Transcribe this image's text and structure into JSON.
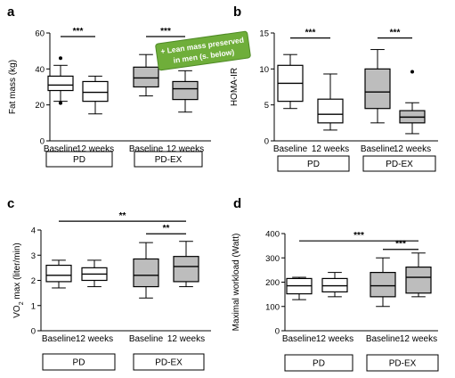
{
  "colors": {
    "white_box": "#ffffff",
    "grey_box": "#bdbdbd",
    "callout": "#6fae3a",
    "line": "#000000"
  },
  "annotation": {
    "text_line1": "+ Lean mass preserved",
    "text_line2": "in men (s. below)"
  },
  "chart_data": [
    {
      "type": "box",
      "panel": "a",
      "ylabel": "Fat mass (kg)",
      "ylim": [
        0,
        60
      ],
      "yticks": [
        "0",
        "20",
        "40",
        "60"
      ],
      "categories": [
        "Baseline",
        "12 weeks",
        "Baseline",
        "12 weeks"
      ],
      "groups": [
        "PD",
        "PD-EX"
      ],
      "boxes": [
        {
          "whislo": 22,
          "q1": 28,
          "med": 31,
          "q3": 36,
          "whishi": 42,
          "fliers": [
            46,
            21
          ],
          "fill": "white"
        },
        {
          "whislo": 15,
          "q1": 22,
          "med": 27,
          "q3": 33,
          "whishi": 36,
          "fliers": [],
          "fill": "white"
        },
        {
          "whislo": 25,
          "q1": 30,
          "med": 35,
          "q3": 41,
          "whishi": 48,
          "fliers": [],
          "fill": "grey"
        },
        {
          "whislo": 16,
          "q1": 23,
          "med": 29,
          "q3": 33,
          "whishi": 39,
          "fliers": [],
          "fill": "grey"
        }
      ],
      "significance": [
        {
          "label": "***",
          "from": 0,
          "to": 1,
          "y": 58
        },
        {
          "label": "***",
          "from": 2,
          "to": 3,
          "y": 58
        }
      ]
    },
    {
      "type": "box",
      "panel": "b",
      "ylabel": "HOMA-IR",
      "ylim": [
        0,
        15
      ],
      "yticks": [
        "0",
        "5",
        "10",
        "15"
      ],
      "categories": [
        "Baseline",
        "12 weeks",
        "Baseline",
        "12 weeks"
      ],
      "groups": [
        "PD",
        "PD-EX"
      ],
      "boxes": [
        {
          "whislo": 4.5,
          "q1": 5.5,
          "med": 8,
          "q3": 10.5,
          "whishi": 12,
          "fliers": [],
          "fill": "white"
        },
        {
          "whislo": 1.5,
          "q1": 2.5,
          "med": 3.7,
          "q3": 5.8,
          "whishi": 9.3,
          "fliers": [],
          "fill": "white"
        },
        {
          "whislo": 2.5,
          "q1": 4.5,
          "med": 6.8,
          "q3": 10,
          "whishi": 12.7,
          "fliers": [],
          "fill": "grey"
        },
        {
          "whislo": 1,
          "q1": 2.5,
          "med": 3.3,
          "q3": 4.2,
          "whishi": 5.3,
          "fliers": [
            9.6
          ],
          "fill": "grey"
        }
      ],
      "significance": [
        {
          "label": "***",
          "from": 0,
          "to": 1,
          "y": 14.3
        },
        {
          "label": "***",
          "from": 2,
          "to": 3,
          "y": 14.3
        }
      ]
    },
    {
      "type": "box",
      "panel": "c",
      "ylabel_main": "VO",
      "ylabel_sub": "2",
      "ylabel_rest": " max (liter/min)",
      "ylim": [
        0,
        4
      ],
      "yticks": [
        "0",
        "1",
        "2",
        "3",
        "4"
      ],
      "categories": [
        "Baseline",
        "12 weeks",
        "Baseline",
        "12 weeks"
      ],
      "groups": [
        "PD",
        "PD-EX"
      ],
      "boxes": [
        {
          "whislo": 1.7,
          "q1": 1.95,
          "med": 2.2,
          "q3": 2.6,
          "whishi": 2.8,
          "fliers": [],
          "fill": "white"
        },
        {
          "whislo": 1.75,
          "q1": 2.0,
          "med": 2.25,
          "q3": 2.5,
          "whishi": 2.8,
          "fliers": [],
          "fill": "white"
        },
        {
          "whislo": 1.3,
          "q1": 1.75,
          "med": 2.2,
          "q3": 2.85,
          "whishi": 3.5,
          "fliers": [],
          "fill": "grey"
        },
        {
          "whislo": 1.75,
          "q1": 1.95,
          "med": 2.55,
          "q3": 2.95,
          "whishi": 3.55,
          "fliers": [],
          "fill": "grey"
        }
      ],
      "significance": [
        {
          "label": "**",
          "from": 0,
          "to": 3,
          "y": 4.35
        },
        {
          "label": "**",
          "from": 2,
          "to": 3,
          "y": 3.85
        }
      ]
    },
    {
      "type": "box",
      "panel": "d",
      "ylabel": "Maximal workload (Watt)",
      "ylim": [
        0,
        400
      ],
      "yticks": [
        "0",
        "100",
        "200",
        "300",
        "400"
      ],
      "categories": [
        "Baseline",
        "12 weeks",
        "Baseline",
        "12 weeks"
      ],
      "groups": [
        "PD",
        "PD-EX"
      ],
      "boxes": [
        {
          "whislo": 128,
          "q1": 152,
          "med": 185,
          "q3": 215,
          "whishi": 220,
          "fliers": [],
          "fill": "white"
        },
        {
          "whislo": 140,
          "q1": 160,
          "med": 185,
          "q3": 215,
          "whishi": 240,
          "fliers": [],
          "fill": "white"
        },
        {
          "whislo": 100,
          "q1": 140,
          "med": 185,
          "q3": 240,
          "whishi": 300,
          "fliers": [],
          "fill": "grey"
        },
        {
          "whislo": 140,
          "q1": 155,
          "med": 220,
          "q3": 262,
          "whishi": 320,
          "fliers": [],
          "fill": "grey"
        }
      ],
      "significance": [
        {
          "label": "***",
          "from": 0,
          "to": 3,
          "y": 370
        },
        {
          "label": "***",
          "from": 2,
          "to": 3,
          "y": 335
        }
      ]
    }
  ]
}
